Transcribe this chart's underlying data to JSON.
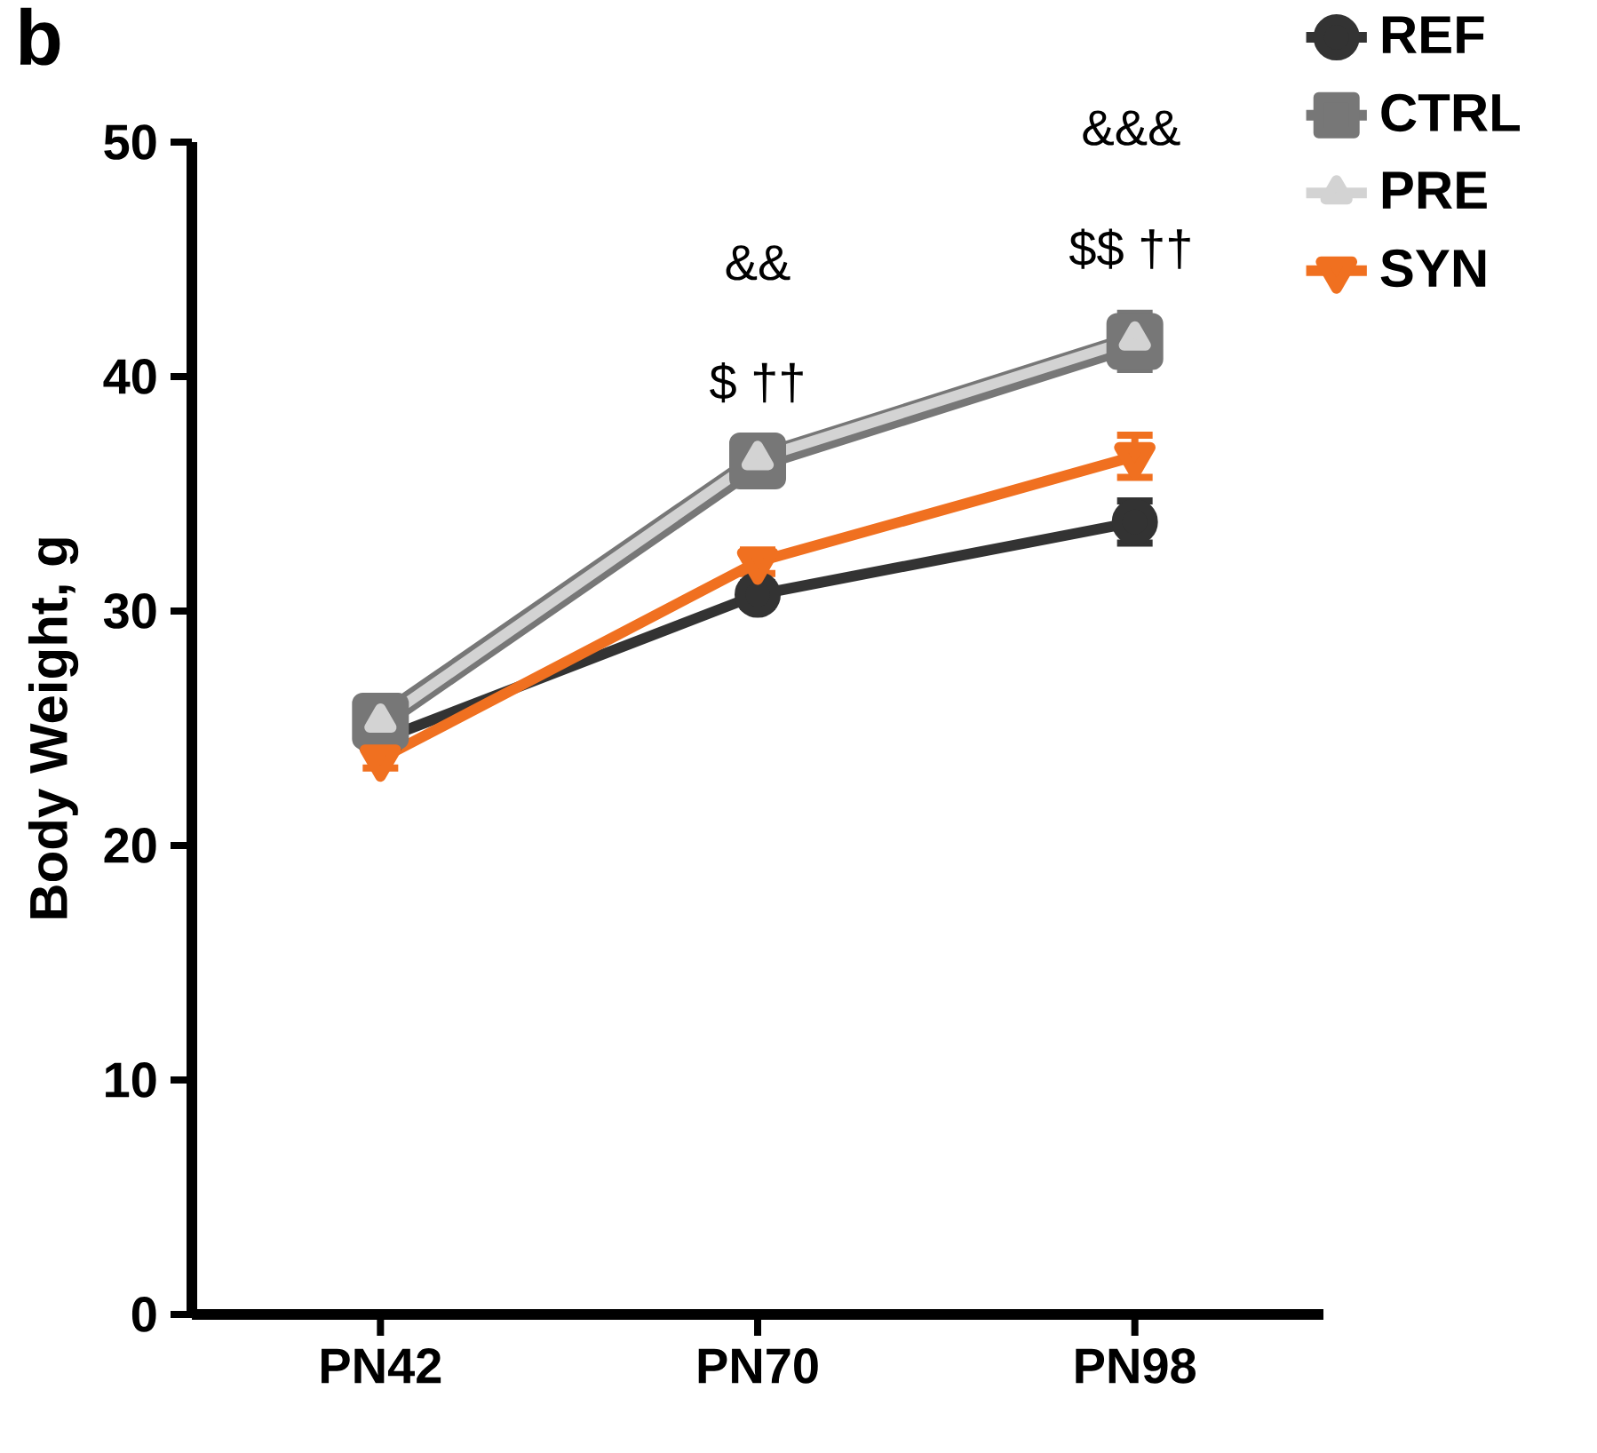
{
  "chart_data": {
    "type": "line",
    "ylabel": "Body Weight, g",
    "categories": [
      "PN42",
      "PN70",
      "PN98"
    ],
    "series": [
      {
        "name": "REF",
        "color": "#333333",
        "marker": "circle",
        "values": [
          24.5,
          30.7,
          33.8
        ],
        "errors": [
          null,
          0.5,
          0.9
        ]
      },
      {
        "name": "CTRL",
        "color": "#777777",
        "marker": "square",
        "values": [
          25.3,
          36.4,
          41.5
        ],
        "errors": [
          0.5,
          0.8,
          1.2
        ]
      },
      {
        "name": "PRE",
        "color": "#d3d3d3",
        "marker": "triangle",
        "values": [
          25.3,
          36.5,
          41.6
        ],
        "errors": [
          0.4,
          0.5,
          0.8
        ]
      },
      {
        "name": "SYN",
        "color": "#f07020",
        "marker": "triangle_down",
        "values": [
          23.7,
          32.1,
          36.6
        ],
        "errors": [
          0.4,
          0.5,
          0.9
        ]
      }
    ],
    "ylim": [
      0,
      50
    ],
    "yticks": [
      0,
      10,
      20,
      30,
      40,
      50
    ],
    "grid": false,
    "legend": "top right",
    "line_style": "solid",
    "annotations": [
      "&&",
      "$ ††",
      "&&&",
      "$$ ††",
      "b"
    ]
  }
}
